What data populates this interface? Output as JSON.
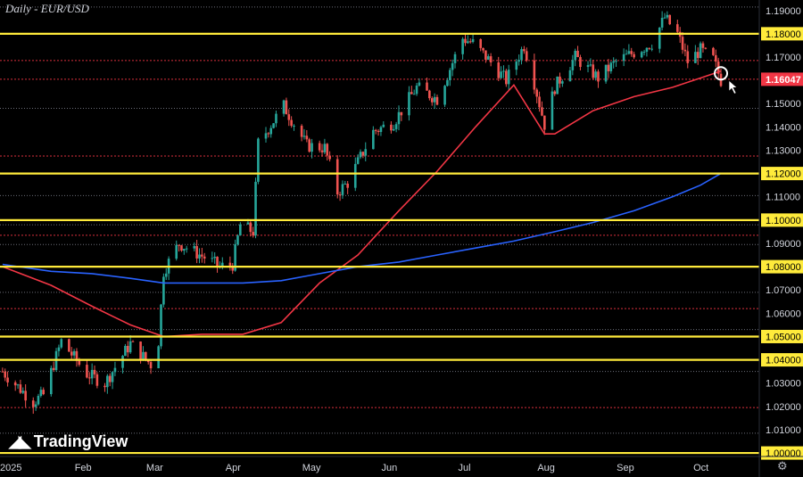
{
  "chart_data": {
    "type": "candlestick",
    "title": "Daily - EUR/USD",
    "symbol": "EUR/USD",
    "interval": "Daily",
    "watermark": "TradingView",
    "last_price": 1.16047,
    "last_price_label": "1.16047",
    "x_labels": [
      {
        "label": "2025",
        "date": "2025-01-01"
      },
      {
        "label": "Feb",
        "date": "2025-02-01"
      },
      {
        "label": "Mar",
        "date": "2025-03-01"
      },
      {
        "label": "Apr",
        "date": "2025-04-01"
      },
      {
        "label": "May",
        "date": "2025-05-01"
      },
      {
        "label": "Jun",
        "date": "2025-06-01"
      },
      {
        "label": "Jul",
        "date": "2025-07-01"
      },
      {
        "label": "Aug",
        "date": "2025-08-01"
      },
      {
        "label": "Sep",
        "date": "2025-09-01"
      },
      {
        "label": "Oct",
        "date": "2025-10-01"
      }
    ],
    "y_ticks": [
      "1.19000",
      "1.17000",
      "1.15000",
      "1.14000",
      "1.13000",
      "1.11000",
      "1.09000",
      "1.07000",
      "1.06000",
      "1.03000",
      "1.02000",
      "1.01000"
    ],
    "ylim": [
      0.9985,
      1.1945
    ],
    "xlim": [
      "2024-12-31",
      "2025-10-24"
    ],
    "key_levels": [
      {
        "value": 1.18,
        "label": "1.18000",
        "color": "#ffeb3b",
        "style": "thick"
      },
      {
        "value": 1.12,
        "label": "1.12000",
        "color": "#ffeb3b",
        "style": "thick"
      },
      {
        "value": 1.1,
        "label": "1.10000",
        "color": "#ffeb3b",
        "style": "thick"
      },
      {
        "value": 1.08,
        "label": "1.08000",
        "color": "#ffeb3b",
        "style": "thick"
      },
      {
        "value": 1.05,
        "label": "1.05000",
        "color": "#ffeb3b",
        "style": "thick"
      },
      {
        "value": 1.04,
        "label": "1.04000",
        "color": "#ffeb3b",
        "style": "thick"
      },
      {
        "value": 1.0,
        "label": "1.00000",
        "color": "#ffeb3b",
        "style": "thick"
      }
    ],
    "minor_levels": [
      {
        "value": 1.1915,
        "color": "#787b86"
      },
      {
        "value": 1.1685,
        "color": "#f23645"
      },
      {
        "value": 1.1605,
        "color": "#f23645"
      },
      {
        "value": 1.148,
        "color": "#787b86"
      },
      {
        "value": 1.1275,
        "color": "#f23645"
      },
      {
        "value": 1.1105,
        "color": "#787b86"
      },
      {
        "value": 1.098,
        "color": "#787b86"
      },
      {
        "value": 1.0935,
        "color": "#f23645"
      },
      {
        "value": 1.0895,
        "color": "#787b86"
      },
      {
        "value": 1.069,
        "color": "#787b86"
      },
      {
        "value": 1.062,
        "color": "#f23645"
      },
      {
        "value": 1.053,
        "color": "#787b86"
      },
      {
        "value": 1.035,
        "color": "#787b86"
      },
      {
        "value": 1.0195,
        "color": "#f23645"
      },
      {
        "value": 1.0085,
        "color": "#787b86"
      }
    ],
    "close_path": [
      [
        "2025-01-01",
        1.035
      ],
      [
        "2025-01-13",
        1.022
      ],
      [
        "2025-01-17",
        1.025
      ],
      [
        "2025-01-24",
        1.048
      ],
      [
        "2025-02-03",
        1.034
      ],
      [
        "2025-02-10",
        1.03
      ],
      [
        "2025-02-20",
        1.047
      ],
      [
        "2025-02-28",
        1.038
      ],
      [
        "2025-03-03",
        1.048
      ],
      [
        "2025-03-05",
        1.078
      ],
      [
        "2025-03-11",
        1.09
      ],
      [
        "2025-03-21",
        1.084
      ],
      [
        "2025-03-27",
        1.08
      ],
      [
        "2025-04-01",
        1.081
      ],
      [
        "2025-04-04",
        1.098
      ],
      [
        "2025-04-09",
        1.095
      ],
      [
        "2025-04-11",
        1.133
      ],
      [
        "2025-04-21",
        1.149
      ],
      [
        "2025-04-30",
        1.132
      ],
      [
        "2025-05-07",
        1.131
      ],
      [
        "2025-05-12",
        1.112
      ],
      [
        "2025-05-16",
        1.116
      ],
      [
        "2025-05-26",
        1.138
      ],
      [
        "2025-06-03",
        1.142
      ],
      [
        "2025-06-12",
        1.157
      ],
      [
        "2025-06-20",
        1.152
      ],
      [
        "2025-06-30",
        1.178
      ],
      [
        "2025-07-04",
        1.176
      ],
      [
        "2025-07-10",
        1.169
      ],
      [
        "2025-07-17",
        1.16
      ],
      [
        "2025-07-24",
        1.175
      ],
      [
        "2025-07-28",
        1.159
      ],
      [
        "2025-08-01",
        1.141
      ],
      [
        "2025-08-05",
        1.157
      ],
      [
        "2025-08-13",
        1.17
      ],
      [
        "2025-08-22",
        1.161
      ],
      [
        "2025-08-29",
        1.168
      ],
      [
        "2025-09-05",
        1.172
      ],
      [
        "2025-09-12",
        1.176
      ],
      [
        "2025-09-17",
        1.187
      ],
      [
        "2025-09-22",
        1.18
      ],
      [
        "2025-09-26",
        1.168
      ],
      [
        "2025-10-01",
        1.173
      ],
      [
        "2025-10-06",
        1.169
      ],
      [
        "2025-10-09",
        1.16
      ]
    ],
    "series": [
      {
        "name": "",
        "type": "moving-average",
        "color": "#f23645",
        "points": [
          [
            "2025-01-01",
            1.08
          ],
          [
            "2025-01-20",
            1.072
          ],
          [
            "2025-02-05",
            1.063
          ],
          [
            "2025-02-20",
            1.055
          ],
          [
            "2025-03-05",
            1.05
          ],
          [
            "2025-03-20",
            1.051
          ],
          [
            "2025-04-05",
            1.051
          ],
          [
            "2025-04-20",
            1.056
          ],
          [
            "2025-05-05",
            1.073
          ],
          [
            "2025-05-20",
            1.085
          ],
          [
            "2025-06-05",
            1.104
          ],
          [
            "2025-06-20",
            1.121
          ],
          [
            "2025-07-05",
            1.14
          ],
          [
            "2025-07-20",
            1.158
          ],
          [
            "2025-08-01",
            1.137
          ],
          [
            "2025-08-05",
            1.137
          ],
          [
            "2025-08-20",
            1.147
          ],
          [
            "2025-09-05",
            1.153
          ],
          [
            "2025-09-20",
            1.157
          ],
          [
            "2025-10-01",
            1.161
          ],
          [
            "2025-10-09",
            1.164
          ]
        ]
      },
      {
        "name": "",
        "type": "moving-average",
        "color": "#2962ff",
        "points": [
          [
            "2025-01-01",
            1.081
          ],
          [
            "2025-01-20",
            1.078
          ],
          [
            "2025-02-05",
            1.077
          ],
          [
            "2025-02-20",
            1.075
          ],
          [
            "2025-03-05",
            1.073
          ],
          [
            "2025-03-20",
            1.073
          ],
          [
            "2025-04-05",
            1.073
          ],
          [
            "2025-04-20",
            1.074
          ],
          [
            "2025-05-05",
            1.077
          ],
          [
            "2025-05-20",
            1.08
          ],
          [
            "2025-06-05",
            1.082
          ],
          [
            "2025-06-20",
            1.085
          ],
          [
            "2025-07-05",
            1.088
          ],
          [
            "2025-07-20",
            1.091
          ],
          [
            "2025-08-05",
            1.095
          ],
          [
            "2025-08-20",
            1.099
          ],
          [
            "2025-09-05",
            1.104
          ],
          [
            "2025-09-20",
            1.11
          ],
          [
            "2025-10-01",
            1.115
          ],
          [
            "2025-10-09",
            1.12
          ]
        ]
      }
    ],
    "annotation": {
      "type": "circle-marker",
      "date": "2025-10-09",
      "value": 1.163
    }
  },
  "colors": {
    "background": "#000000",
    "up": "#26a69a",
    "down": "#ef5350",
    "axis_text": "#d1d4dc",
    "last_price_bg": "#f23645",
    "level_label_bg": "#ffeb3b",
    "level_label_text": "#000000"
  },
  "icons": {
    "settings": "gear-icon",
    "cursor": "cursor-arrow-icon"
  }
}
